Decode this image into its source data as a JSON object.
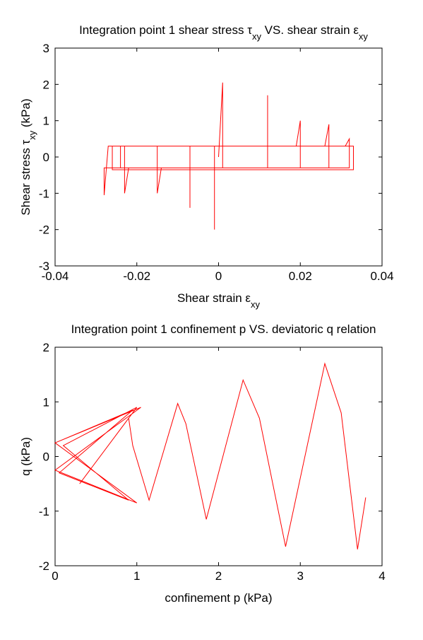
{
  "chart_data": [
    {
      "type": "line",
      "title": [
        {
          "text": "Integration point 1 shear stress τ"
        },
        {
          "text": "xy",
          "sub": true
        },
        {
          "text": " VS. shear strain ε"
        },
        {
          "text": "xy",
          "sub": true
        }
      ],
      "xlabel": [
        {
          "text": "Shear strain ε"
        },
        {
          "text": "xy",
          "sub": true
        }
      ],
      "ylabel": [
        {
          "text": "Shear stress τ"
        },
        {
          "text": "xy",
          "sub": true
        },
        {
          "text": " (kPa)"
        }
      ],
      "xlim": [
        -0.04,
        0.04
      ],
      "xticks": [
        -0.04,
        -0.02,
        0,
        0.02,
        0.04
      ],
      "ylim": [
        -3,
        3
      ],
      "yticks": [
        -3,
        -2,
        -1,
        0,
        1,
        2,
        3
      ],
      "series": [
        {
          "color": "#ff0000",
          "x": [
            0,
            0.001,
            0.001,
            -0.001,
            -0.001,
            -0.001,
            0.012,
            0.012,
            0.012,
            -0.007,
            -0.007,
            -0.007,
            0.019,
            0.02,
            0.02,
            -0.014,
            -0.015,
            -0.015,
            0.026,
            0.027,
            0.027,
            -0.022,
            -0.023,
            -0.023,
            0.031,
            0.032,
            0.032,
            -0.028,
            -0.028,
            -0.027,
            0.033,
            0.033,
            -0.026,
            -0.026,
            0.032,
            0.032,
            -0.024,
            -0.024,
            0.03
          ],
          "values": [
            0,
            2.05,
            -0.3,
            -0.3,
            -2.0,
            0.3,
            0.3,
            1.7,
            -0.3,
            -0.3,
            -1.4,
            0.3,
            0.3,
            1.0,
            -0.3,
            -0.3,
            -1.0,
            0.3,
            0.3,
            0.9,
            -0.3,
            -0.3,
            -1.0,
            0.3,
            0.3,
            0.5,
            -0.3,
            -0.3,
            -1.05,
            0.3,
            0.3,
            -0.35,
            -0.35,
            0.3,
            0.3,
            -0.3,
            -0.3,
            0.3,
            0.3
          ]
        }
      ]
    },
    {
      "type": "line",
      "title": [
        {
          "text": "Integration point 1 confinement p VS. deviatoric q relation"
        }
      ],
      "xlabel": [
        {
          "text": "confinement p (kPa)"
        }
      ],
      "ylabel": [
        {
          "text": "q (kPa)"
        }
      ],
      "xlim": [
        0,
        4
      ],
      "xticks": [
        0,
        1,
        2,
        3,
        4
      ],
      "ylim": [
        -2,
        2
      ],
      "yticks": [
        -2,
        -1,
        0,
        1,
        2
      ],
      "series": [
        {
          "color": "#ff0000",
          "x": [
            0,
            1.05,
            0,
            1.0,
            0,
            0.95,
            0.05,
            0.9,
            0.1,
            1.0,
            0.3,
            0.9,
            0.95,
            1.15,
            1.5,
            1.6,
            1.85,
            2.3,
            2.5,
            2.82,
            3.3,
            3.5,
            3.7,
            3.8
          ],
          "values": [
            0.25,
            0.9,
            -0.25,
            -0.85,
            0.25,
            0.85,
            -0.3,
            -0.8,
            0.2,
            0.9,
            -0.5,
            0.7,
            0.2,
            -0.8,
            0.97,
            0.6,
            -1.15,
            1.4,
            0.7,
            -1.65,
            1.7,
            0.8,
            -1.7,
            -0.75
          ]
        }
      ]
    }
  ]
}
